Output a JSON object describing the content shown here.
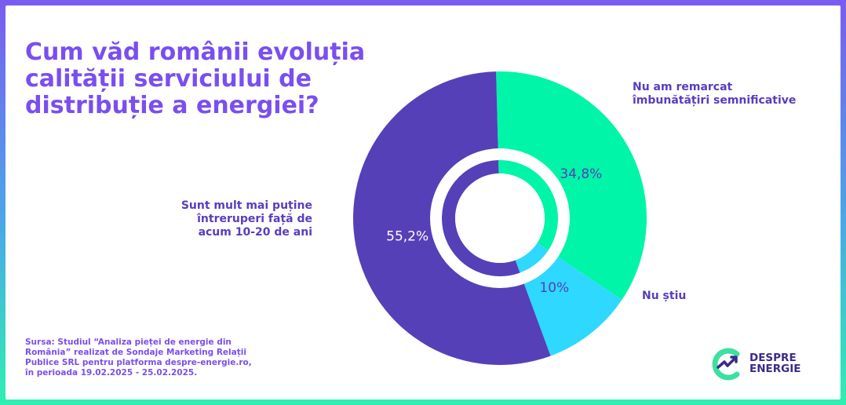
{
  "title_lines": [
    "Cum văd românii evoluția",
    "calității serviciului de",
    "distribuție a energiei?"
  ],
  "chart_data": {
    "type": "pie",
    "style": "donut",
    "slices": [
      {
        "label": "Nu am remarcat îmbunătățiri semnificative",
        "value": 34.8,
        "value_label": "34,8%",
        "color": "#00f5a8"
      },
      {
        "label": "Nu știu",
        "value": 10,
        "value_label": "10%",
        "color": "#2ed8ff"
      },
      {
        "label": "Sunt mult mai puține întreruperi față de acum 10-20 de ani",
        "value": 55.2,
        "value_label": "55,2%",
        "color": "#5540b8"
      }
    ]
  },
  "labels": {
    "left": [
      "Sunt mult mai puține",
      "întreruperi față de",
      "acum 10-20 de ani"
    ],
    "top_right": [
      "Nu am remarcat",
      "îmbunătățiri semnificative"
    ],
    "bottom_right": [
      "Nu știu"
    ]
  },
  "source_lines": [
    "Sursa: Studiul “Analiza pieței de energie din",
    "România” realizat de Sondaje Marketing Relații",
    "Publice SRL pentru platforma despre-energie.ro,",
    "în perioada 19.02.2025 - 25.02.2025."
  ],
  "logo": {
    "line1": "DESPRE",
    "line2": "ENERGIE",
    "icon": "despre-energie-logo-icon",
    "color_c": "#3de0a0",
    "color_arrow": "#3a2a8a"
  }
}
